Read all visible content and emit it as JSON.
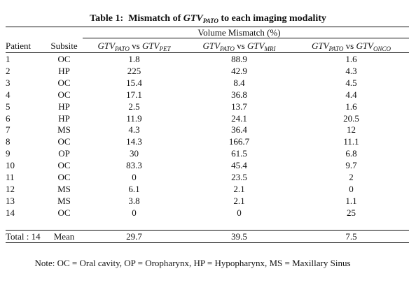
{
  "header": {
    "label": "Table 1:",
    "text_before": "Mismatch of",
    "var": "GTV",
    "sub": "PATO",
    "text_after": "to each imaging modality"
  },
  "table": {
    "group_header": "Volume Mismatch (%)",
    "columns": [
      {
        "text": "Patient"
      },
      {
        "text": "Subsite"
      },
      {
        "a": "GTV",
        "a_sub": "PATO",
        "vs": "vs",
        "b": "GTV",
        "b_sub": "PET"
      },
      {
        "a": "GTV",
        "a_sub": "PATO",
        "vs": "vs",
        "b": "GTV",
        "b_sub": "MRI"
      },
      {
        "a": "GTV",
        "a_sub": "PATO",
        "vs": "vs",
        "b": "GTV",
        "b_sub": "ONCO"
      }
    ],
    "rows": [
      [
        "1",
        "OC",
        "1.8",
        "88.9",
        "1.6"
      ],
      [
        "2",
        "HP",
        "225",
        "42.9",
        "4.3"
      ],
      [
        "3",
        "OC",
        "15.4",
        "8.4",
        "4.5"
      ],
      [
        "4",
        "OC",
        "17.1",
        "36.8",
        "4.4"
      ],
      [
        "5",
        "HP",
        "2.5",
        "13.7",
        "1.6"
      ],
      [
        "6",
        "HP",
        "11.9",
        "24.1",
        "20.5"
      ],
      [
        "7",
        "MS",
        "4.3",
        "36.4",
        "12"
      ],
      [
        "8",
        "OC",
        "14.3",
        "166.7",
        "11.1"
      ],
      [
        "9",
        "OP",
        "30",
        "61.5",
        "6.8"
      ],
      [
        "10",
        "OC",
        "83.3",
        "45.4",
        "9.7"
      ],
      [
        "11",
        "OC",
        "0",
        "23.5",
        "2"
      ],
      [
        "12",
        "MS",
        "6.1",
        "2.1",
        "0"
      ],
      [
        "13",
        "MS",
        "3.8",
        "2.1",
        "1.1"
      ],
      [
        "14",
        "OC",
        "0",
        "0",
        "25"
      ]
    ],
    "footer": [
      "Total : 14",
      "Mean",
      "29.7",
      "39.5",
      "7.5"
    ]
  },
  "note": "Note: OC = Oral cavity, OP = Oropharynx, HP = Hypopharynx, MS = Maxillary Sinus"
}
